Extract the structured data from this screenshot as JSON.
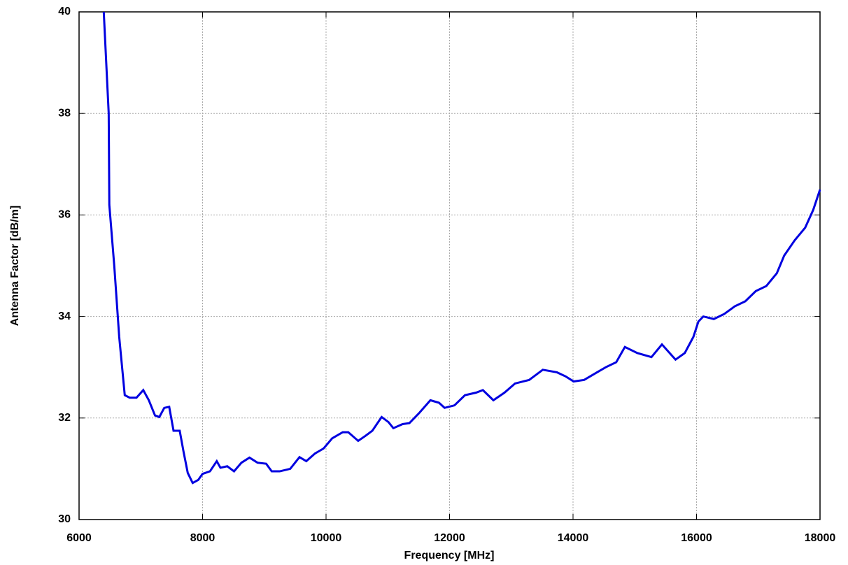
{
  "chart_data": {
    "type": "line",
    "x_label": "Frequency [MHz]",
    "y_label": "Antenna Factor [dB/m]",
    "x": [
      6400,
      6480,
      6490,
      6570,
      6650,
      6740,
      6820,
      6930,
      7040,
      7130,
      7230,
      7300,
      7380,
      7460,
      7530,
      7630,
      7690,
      7760,
      7840,
      7930,
      8000,
      8120,
      8230,
      8290,
      8400,
      8510,
      8630,
      8760,
      8890,
      9030,
      9120,
      9250,
      9420,
      9570,
      9680,
      9820,
      9960,
      10100,
      10270,
      10360,
      10520,
      10640,
      10750,
      10900,
      11010,
      11090,
      11240,
      11350,
      11510,
      11690,
      11830,
      11920,
      12080,
      12250,
      12430,
      12540,
      12710,
      12890,
      13060,
      13290,
      13510,
      13740,
      13880,
      14010,
      14180,
      14360,
      14530,
      14700,
      14840,
      15040,
      15270,
      15440,
      15660,
      15810,
      15950,
      16030,
      16110,
      16280,
      16450,
      16620,
      16790,
      16960,
      17130,
      17300,
      17420,
      17590,
      17760,
      17890,
      18000
    ],
    "series": [
      {
        "color": "#0000e0",
        "values": [
          40,
          38,
          36.2,
          35,
          33.6,
          32.45,
          32.4,
          32.4,
          32.55,
          32.35,
          32.05,
          32.02,
          32.2,
          32.22,
          31.75,
          31.75,
          31.35,
          30.92,
          30.72,
          30.78,
          30.9,
          30.95,
          31.15,
          31.02,
          31.05,
          30.95,
          31.12,
          31.22,
          31.12,
          31.1,
          30.95,
          30.95,
          31.0,
          31.23,
          31.15,
          31.3,
          31.4,
          31.6,
          31.72,
          31.72,
          31.55,
          31.65,
          31.75,
          32.02,
          31.92,
          31.8,
          31.88,
          31.9,
          32.1,
          32.35,
          32.3,
          32.2,
          32.25,
          32.45,
          32.5,
          32.55,
          32.35,
          32.5,
          32.68,
          32.75,
          32.95,
          32.9,
          32.82,
          32.72,
          32.75,
          32.88,
          33.0,
          33.1,
          33.4,
          33.28,
          33.2,
          33.45,
          33.15,
          33.28,
          33.6,
          33.9,
          34.0,
          33.95,
          34.05,
          34.2,
          34.3,
          34.5,
          34.6,
          34.85,
          35.2,
          35.5,
          35.75,
          36.1,
          36.5
        ]
      }
    ],
    "xlim": [
      6000,
      18000
    ],
    "xticks": [
      6000,
      8000,
      10000,
      12000,
      14000,
      16000,
      18000
    ],
    "ylim": [
      30,
      40
    ],
    "yticks": [
      30,
      32,
      34,
      36,
      38,
      40
    ],
    "grid": true
  }
}
